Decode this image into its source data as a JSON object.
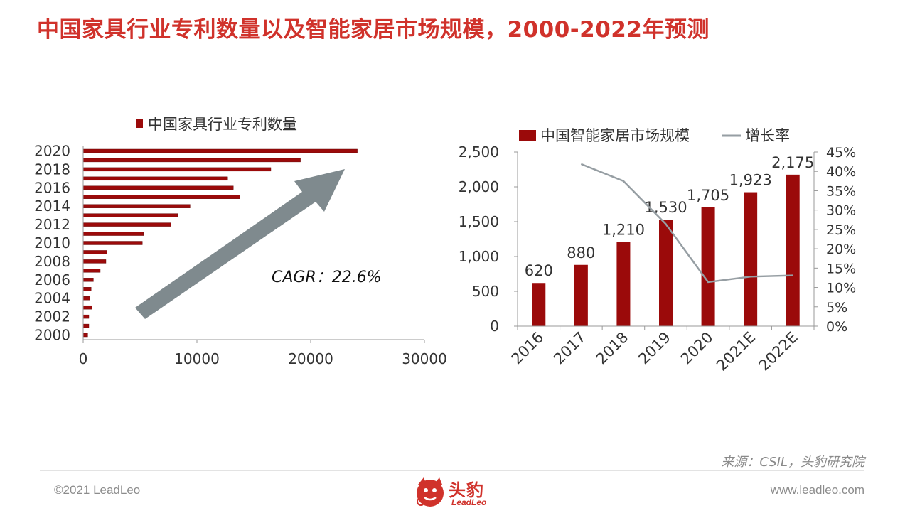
{
  "page": {
    "title": "中国家具行业专利数量以及智能家居市场规模，2000-2022年预测",
    "source": "来源：CSIL，头豹研究院",
    "copyright": "©2021 LeadLeo",
    "website": "www.leadleo.com",
    "logo_cn": "头豹",
    "logo_en": "LeadLeo"
  },
  "colors": {
    "title": "#d0322b",
    "bar": "#9b0a0a",
    "line": "#969ea3",
    "arrow": "#7f8a8e",
    "muted_text": "#8c8c8c"
  },
  "chart_data": [
    {
      "type": "bar",
      "orientation": "horizontal",
      "legend": "中国家具行业专利数量",
      "categories": [
        "2000",
        "2001",
        "2002",
        "2003",
        "2004",
        "2005",
        "2006",
        "2007",
        "2008",
        "2009",
        "2010",
        "2011",
        "2012",
        "2013",
        "2014",
        "2015",
        "2016",
        "2017",
        "2018",
        "2019",
        "2020"
      ],
      "values": [
        400,
        500,
        500,
        800,
        600,
        700,
        900,
        1500,
        2000,
        2100,
        5200,
        5300,
        7700,
        8300,
        9400,
        13800,
        13200,
        12700,
        16500,
        19100,
        24100
      ],
      "ytick_labels": [
        "2000",
        "2002",
        "2004",
        "2006",
        "2008",
        "2010",
        "2012",
        "2014",
        "2016",
        "2018",
        "2020"
      ],
      "xticks": [
        0,
        10000,
        20000,
        30000
      ],
      "xtick_labels": [
        "0",
        "10000",
        "20000",
        "30000"
      ],
      "xlim": [
        0,
        30000
      ],
      "annotation": "CAGR：22.6%"
    },
    {
      "type": "bar+line",
      "categories": [
        "2016",
        "2017",
        "2018",
        "2019",
        "2020",
        "2021E",
        "2022E"
      ],
      "series": [
        {
          "name": "中国智能家居市场规模",
          "type": "bar",
          "axis": "left",
          "values": [
            620,
            880,
            1210,
            1530,
            1705,
            1923,
            2175
          ],
          "labels": [
            "620",
            "880",
            "1,210",
            "1,530",
            "1,705",
            "1,923",
            "2,175"
          ]
        },
        {
          "name": "增长率",
          "type": "line",
          "axis": "right",
          "values": [
            null,
            41.9,
            37.5,
            26.4,
            11.4,
            12.8,
            13.1
          ]
        }
      ],
      "yticks_left": [
        0,
        500,
        1000,
        1500,
        2000,
        2500
      ],
      "ytick_labels_left": [
        "0",
        "500",
        "1,000",
        "1,500",
        "2,000",
        "2,500"
      ],
      "ylim_left": [
        0,
        2500
      ],
      "yticks_right": [
        0,
        5,
        10,
        15,
        20,
        25,
        30,
        35,
        40,
        45
      ],
      "ytick_labels_right": [
        "0%",
        "5%",
        "10%",
        "15%",
        "20%",
        "25%",
        "30%",
        "35%",
        "40%",
        "45%"
      ],
      "ylim_right": [
        0,
        45
      ],
      "legend_position": "top"
    }
  ]
}
